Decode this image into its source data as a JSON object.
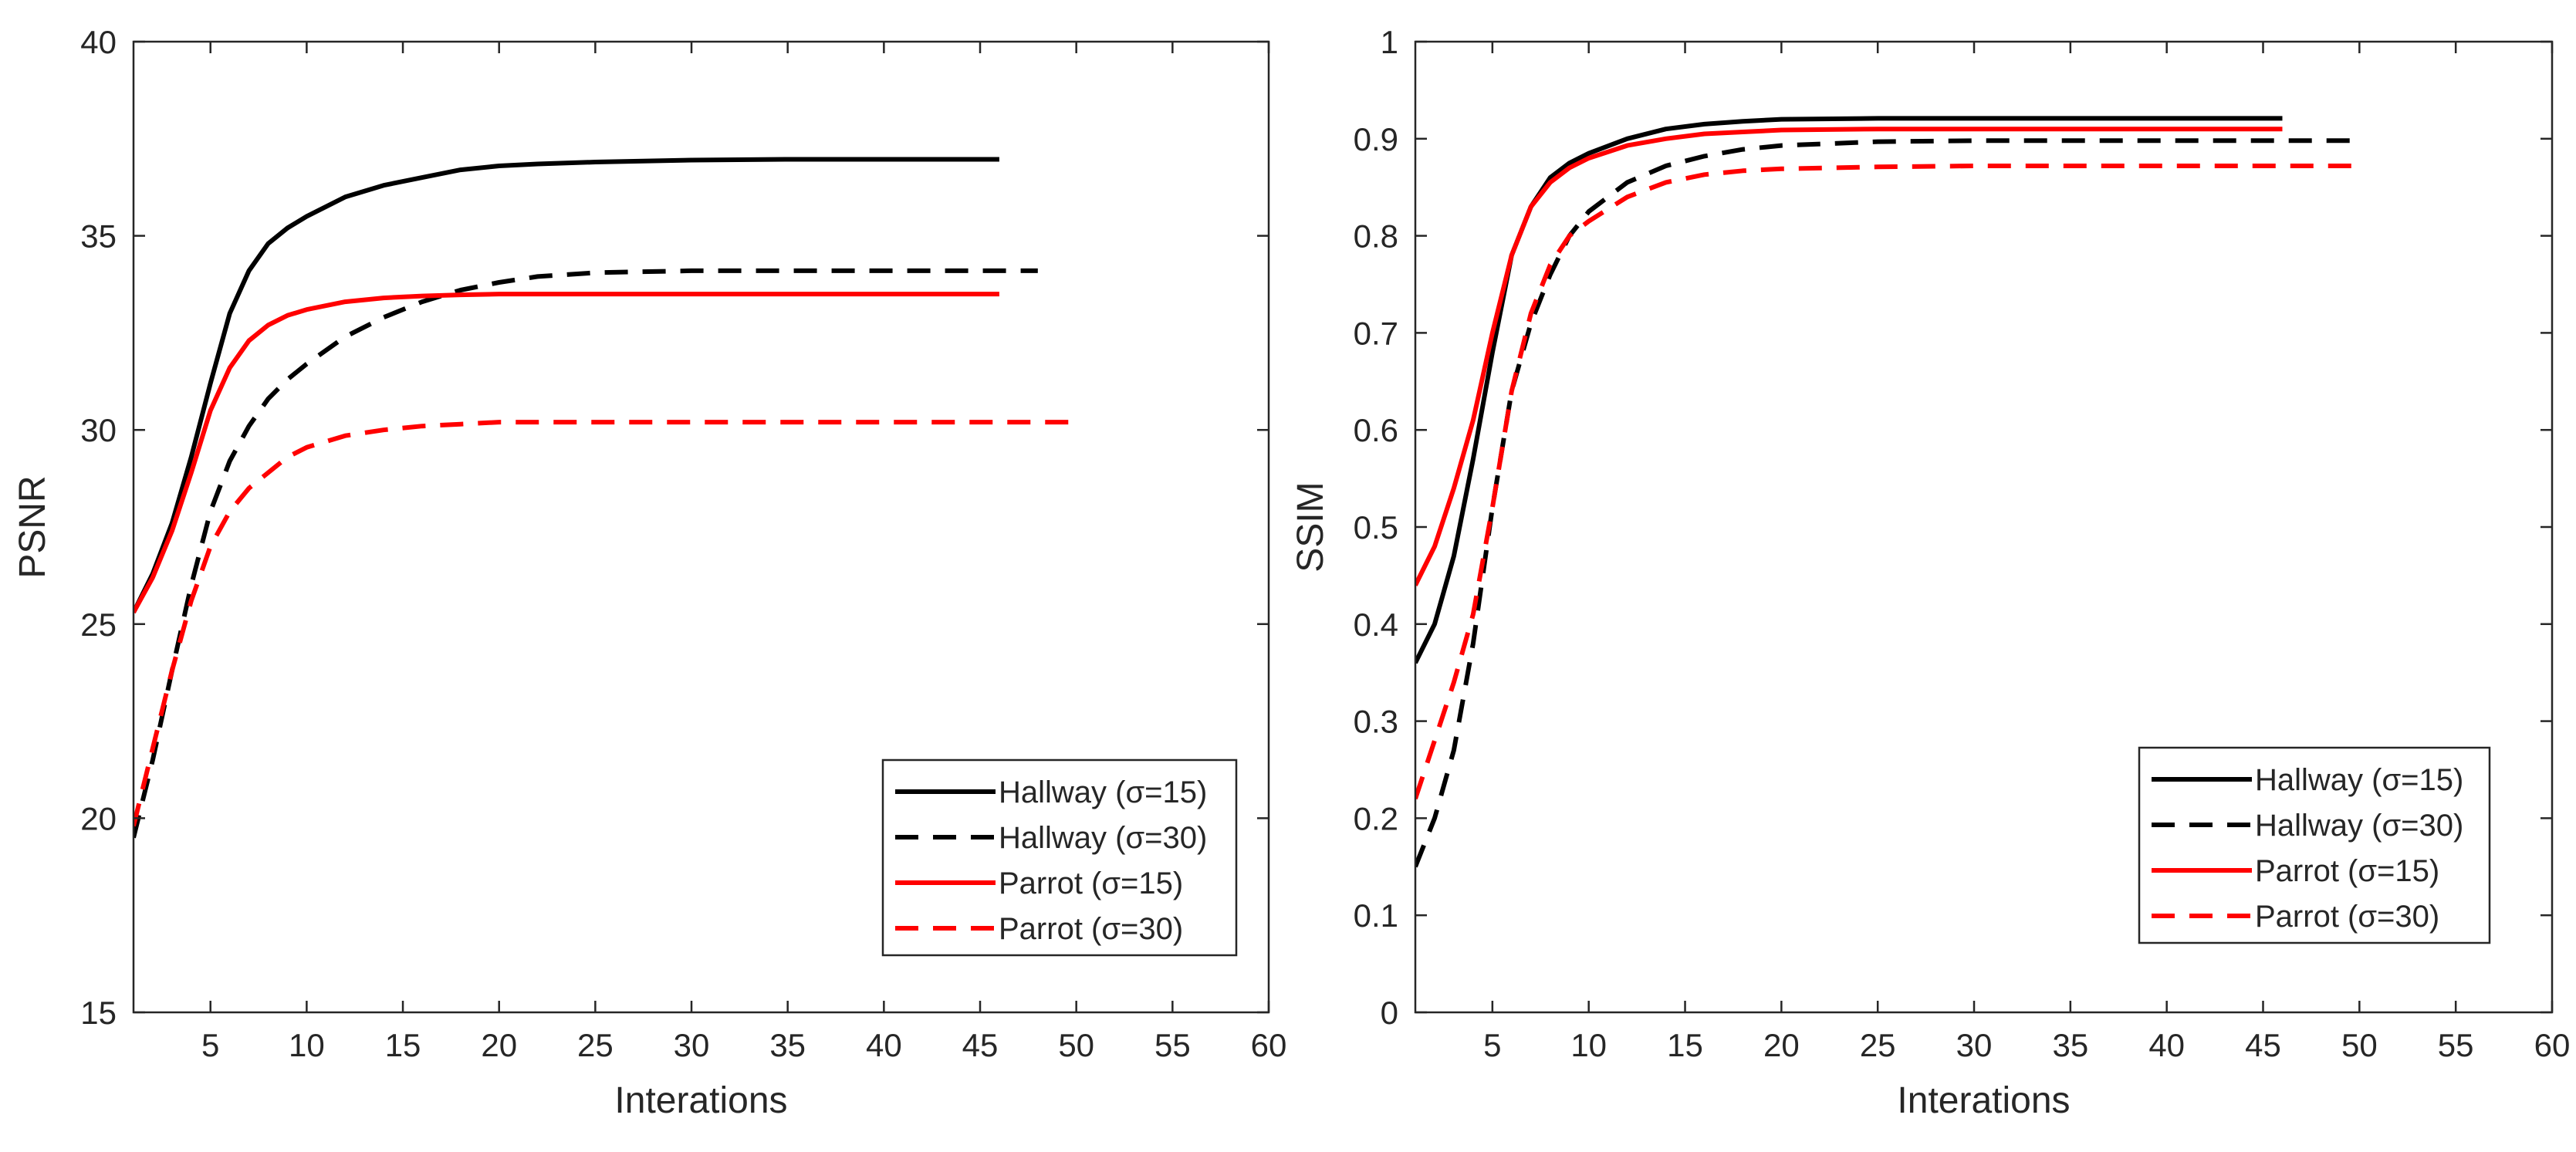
{
  "chart_data": [
    {
      "type": "line",
      "xlabel": "Interations",
      "ylabel": "PSNR",
      "xlim": [
        1,
        60
      ],
      "ylim": [
        15,
        40
      ],
      "x_ticks": [
        5,
        10,
        15,
        20,
        25,
        30,
        35,
        40,
        45,
        50,
        55,
        60
      ],
      "y_ticks": [
        15,
        20,
        25,
        30,
        35,
        40
      ],
      "legend_position": "bottom-right",
      "series": [
        {
          "name": "Hallway (σ=15)",
          "color": "#000000",
          "dash": "solid",
          "x": [
            1,
            2,
            3,
            4,
            5,
            6,
            7,
            8,
            9,
            10,
            12,
            14,
            16,
            18,
            20,
            22,
            25,
            30,
            35,
            40,
            46
          ],
          "y": [
            25.3,
            26.3,
            27.6,
            29.3,
            31.2,
            33.0,
            34.1,
            34.8,
            35.2,
            35.5,
            36.0,
            36.3,
            36.5,
            36.7,
            36.8,
            36.85,
            36.9,
            36.95,
            36.97,
            36.97,
            36.97
          ]
        },
        {
          "name": "Hallway (σ=30)",
          "color": "#000000",
          "dash": "dashed",
          "x": [
            1,
            2,
            3,
            4,
            5,
            6,
            7,
            8,
            9,
            10,
            12,
            14,
            16,
            18,
            20,
            22,
            25,
            30,
            35,
            40,
            45,
            48
          ],
          "y": [
            19.5,
            21.5,
            23.8,
            26.0,
            27.9,
            29.2,
            30.1,
            30.8,
            31.3,
            31.7,
            32.4,
            32.9,
            33.3,
            33.6,
            33.8,
            33.95,
            34.05,
            34.1,
            34.1,
            34.1,
            34.1,
            34.1
          ]
        },
        {
          "name": "Parrot (σ=15)",
          "color": "#ff0000",
          "dash": "solid",
          "x": [
            1,
            2,
            3,
            4,
            5,
            6,
            7,
            8,
            9,
            10,
            12,
            14,
            16,
            18,
            20,
            25,
            30,
            35,
            40,
            46
          ],
          "y": [
            25.3,
            26.2,
            27.4,
            28.9,
            30.5,
            31.6,
            32.3,
            32.7,
            32.95,
            33.1,
            33.3,
            33.4,
            33.45,
            33.48,
            33.5,
            33.5,
            33.5,
            33.5,
            33.5,
            33.5
          ]
        },
        {
          "name": "Parrot (σ=30)",
          "color": "#ff0000",
          "dash": "dashed",
          "x": [
            1,
            2,
            3,
            4,
            5,
            6,
            7,
            8,
            9,
            10,
            12,
            14,
            16,
            18,
            20,
            25,
            30,
            35,
            40,
            45,
            50
          ],
          "y": [
            19.8,
            21.8,
            23.8,
            25.6,
            27.0,
            27.9,
            28.5,
            28.9,
            29.3,
            29.55,
            29.85,
            30.0,
            30.1,
            30.15,
            30.2,
            30.2,
            30.2,
            30.2,
            30.2,
            30.2,
            30.2
          ]
        }
      ]
    },
    {
      "type": "line",
      "xlabel": "Interations",
      "ylabel": "SSIM",
      "xlim": [
        1,
        60
      ],
      "ylim": [
        0,
        1
      ],
      "x_ticks": [
        5,
        10,
        15,
        20,
        25,
        30,
        35,
        40,
        45,
        50,
        55,
        60
      ],
      "y_ticks": [
        0,
        0.1,
        0.2,
        0.3,
        0.4,
        0.5,
        0.6,
        0.7,
        0.8,
        0.9,
        1
      ],
      "legend_position": "bottom-right",
      "series": [
        {
          "name": "Hallway (σ=15)",
          "color": "#000000",
          "dash": "solid",
          "x": [
            1,
            2,
            3,
            4,
            5,
            6,
            7,
            8,
            9,
            10,
            12,
            14,
            16,
            18,
            20,
            25,
            30,
            35,
            40,
            46
          ],
          "y": [
            0.36,
            0.4,
            0.47,
            0.57,
            0.68,
            0.78,
            0.83,
            0.86,
            0.875,
            0.885,
            0.9,
            0.91,
            0.915,
            0.918,
            0.92,
            0.921,
            0.921,
            0.921,
            0.921,
            0.921
          ]
        },
        {
          "name": "Hallway (σ=30)",
          "color": "#000000",
          "dash": "dashed",
          "x": [
            1,
            2,
            3,
            4,
            5,
            6,
            7,
            8,
            9,
            10,
            12,
            14,
            16,
            18,
            20,
            25,
            30,
            35,
            40,
            45,
            50
          ],
          "y": [
            0.15,
            0.2,
            0.27,
            0.38,
            0.52,
            0.64,
            0.71,
            0.76,
            0.8,
            0.825,
            0.855,
            0.872,
            0.882,
            0.889,
            0.893,
            0.897,
            0.898,
            0.898,
            0.898,
            0.898,
            0.898
          ]
        },
        {
          "name": "Parrot (σ=15)",
          "color": "#ff0000",
          "dash": "solid",
          "x": [
            1,
            2,
            3,
            4,
            5,
            6,
            7,
            8,
            9,
            10,
            12,
            14,
            16,
            18,
            20,
            25,
            30,
            35,
            40,
            46
          ],
          "y": [
            0.44,
            0.48,
            0.54,
            0.61,
            0.7,
            0.78,
            0.83,
            0.855,
            0.87,
            0.88,
            0.893,
            0.9,
            0.905,
            0.907,
            0.909,
            0.91,
            0.91,
            0.91,
            0.91,
            0.91
          ]
        },
        {
          "name": "Parrot (σ=30)",
          "color": "#ff0000",
          "dash": "dashed",
          "x": [
            1,
            2,
            3,
            4,
            5,
            6,
            7,
            8,
            9,
            10,
            12,
            14,
            16,
            18,
            20,
            25,
            30,
            35,
            40,
            45,
            50
          ],
          "y": [
            0.22,
            0.28,
            0.34,
            0.41,
            0.52,
            0.64,
            0.72,
            0.77,
            0.8,
            0.815,
            0.84,
            0.855,
            0.863,
            0.867,
            0.869,
            0.871,
            0.872,
            0.872,
            0.872,
            0.872,
            0.872
          ]
        }
      ]
    }
  ]
}
